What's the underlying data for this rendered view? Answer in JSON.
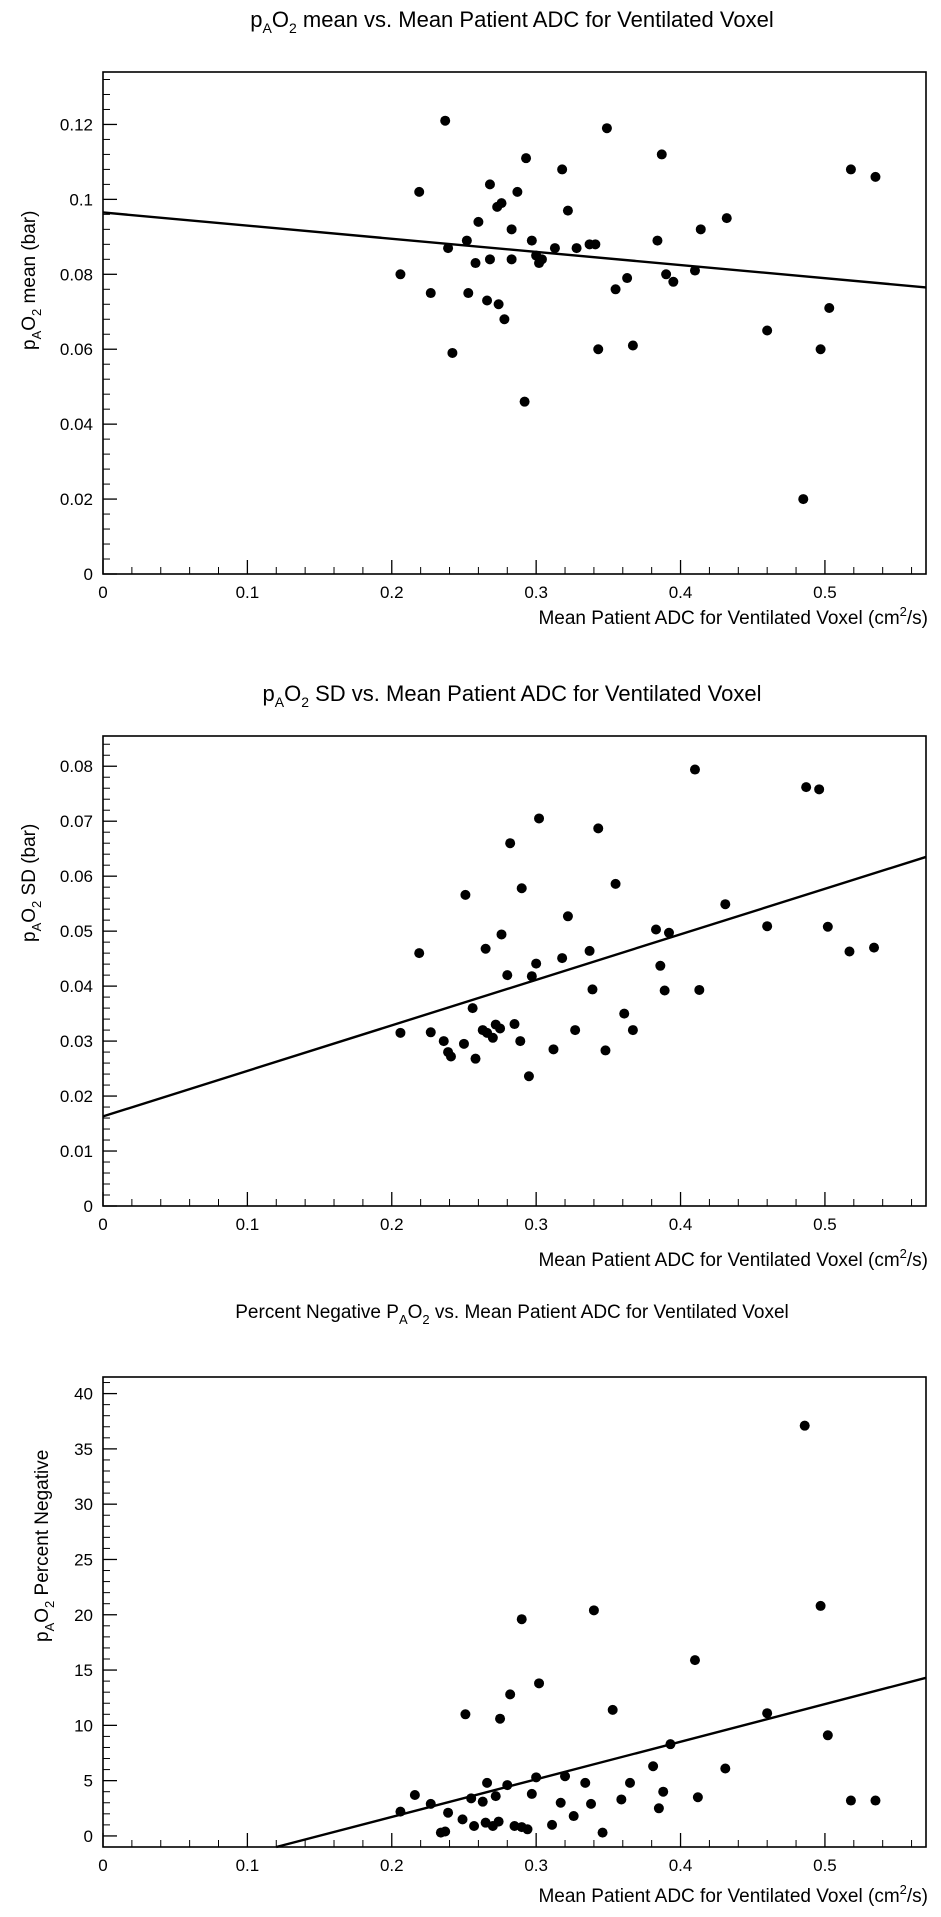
{
  "chart_data": [
    {
      "type": "scatter",
      "title": {
        "prefix": "p",
        "sub": "A",
        "mid": "O",
        "sub2": "2",
        "rest": " mean vs. Mean Patient ADC for Ventilated Voxel"
      },
      "xlabel": {
        "text": "Mean Patient ADC for Ventilated Voxel (cm",
        "sup": "2",
        "tail": "/s)"
      },
      "ylabel": {
        "prefix": "p",
        "sub": "A",
        "mid": "O",
        "sub2": "2",
        "rest": " mean (bar)"
      },
      "xlim": [
        0,
        0.57
      ],
      "ylim": [
        0,
        0.134
      ],
      "xticks": [
        "0",
        "0.1",
        "0.2",
        "0.3",
        "0.4",
        "0.5"
      ],
      "xtick_values": [
        0,
        0.1,
        0.2,
        0.3,
        0.4,
        0.5
      ],
      "yticks": [
        "0",
        "0.02",
        "0.04",
        "0.06",
        "0.08",
        "0.1",
        "0.12"
      ],
      "ytick_values": [
        0,
        0.02,
        0.04,
        0.06,
        0.08,
        0.1,
        0.12
      ],
      "fit_line": [
        [
          0,
          0.0965
        ],
        [
          0.57,
          0.0765
        ]
      ],
      "points": [
        [
          0.206,
          0.08
        ],
        [
          0.219,
          0.102
        ],
        [
          0.227,
          0.075
        ],
        [
          0.237,
          0.121
        ],
        [
          0.239,
          0.087
        ],
        [
          0.242,
          0.059
        ],
        [
          0.252,
          0.089
        ],
        [
          0.253,
          0.075
        ],
        [
          0.258,
          0.083
        ],
        [
          0.26,
          0.094
        ],
        [
          0.266,
          0.073
        ],
        [
          0.268,
          0.104
        ],
        [
          0.268,
          0.084
        ],
        [
          0.273,
          0.098
        ],
        [
          0.274,
          0.072
        ],
        [
          0.276,
          0.099
        ],
        [
          0.278,
          0.068
        ],
        [
          0.283,
          0.092
        ],
        [
          0.283,
          0.084
        ],
        [
          0.287,
          0.102
        ],
        [
          0.292,
          0.046
        ],
        [
          0.293,
          0.111
        ],
        [
          0.297,
          0.089
        ],
        [
          0.3,
          0.085
        ],
        [
          0.302,
          0.083
        ],
        [
          0.304,
          0.084
        ],
        [
          0.313,
          0.087
        ],
        [
          0.318,
          0.108
        ],
        [
          0.322,
          0.097
        ],
        [
          0.328,
          0.087
        ],
        [
          0.337,
          0.088
        ],
        [
          0.341,
          0.088
        ],
        [
          0.343,
          0.06
        ],
        [
          0.349,
          0.119
        ],
        [
          0.355,
          0.076
        ],
        [
          0.363,
          0.079
        ],
        [
          0.367,
          0.061
        ],
        [
          0.384,
          0.089
        ],
        [
          0.387,
          0.112
        ],
        [
          0.39,
          0.08
        ],
        [
          0.395,
          0.078
        ],
        [
          0.41,
          0.081
        ],
        [
          0.414,
          0.092
        ],
        [
          0.432,
          0.095
        ],
        [
          0.46,
          0.065
        ],
        [
          0.485,
          0.02
        ],
        [
          0.497,
          0.06
        ],
        [
          0.503,
          0.071
        ],
        [
          0.518,
          0.108
        ],
        [
          0.535,
          0.106
        ]
      ]
    },
    {
      "type": "scatter",
      "title": {
        "prefix": "p",
        "sub": "A",
        "mid": "O",
        "sub2": "2",
        "rest": " SD vs. Mean Patient ADC for Ventilated Voxel"
      },
      "xlabel": {
        "text": "Mean Patient ADC for Ventilated Voxel (cm",
        "sup": "2",
        "tail": "/s)"
      },
      "ylabel": {
        "prefix": "p",
        "sub": "A",
        "mid": "O",
        "sub2": "2",
        "rest": " SD (bar)"
      },
      "xlim": [
        0,
        0.57
      ],
      "ylim": [
        0,
        0.0855
      ],
      "xticks": [
        "0",
        "0.1",
        "0.2",
        "0.3",
        "0.4",
        "0.5"
      ],
      "xtick_values": [
        0,
        0.1,
        0.2,
        0.3,
        0.4,
        0.5
      ],
      "yticks": [
        "0",
        "0.01",
        "0.02",
        "0.03",
        "0.04",
        "0.05",
        "0.06",
        "0.07",
        "0.08"
      ],
      "ytick_values": [
        0,
        0.01,
        0.02,
        0.03,
        0.04,
        0.05,
        0.06,
        0.07,
        0.08
      ],
      "fit_line": [
        [
          0,
          0.0163
        ],
        [
          0.57,
          0.0635
        ]
      ],
      "points": [
        [
          0.206,
          0.0315
        ],
        [
          0.219,
          0.046
        ],
        [
          0.227,
          0.0316
        ],
        [
          0.236,
          0.03
        ],
        [
          0.239,
          0.028
        ],
        [
          0.241,
          0.0272
        ],
        [
          0.25,
          0.0295
        ],
        [
          0.251,
          0.0566
        ],
        [
          0.256,
          0.036
        ],
        [
          0.258,
          0.0268
        ],
        [
          0.263,
          0.032
        ],
        [
          0.265,
          0.0468
        ],
        [
          0.266,
          0.0315
        ],
        [
          0.27,
          0.0306
        ],
        [
          0.272,
          0.033
        ],
        [
          0.275,
          0.0323
        ],
        [
          0.276,
          0.0494
        ],
        [
          0.28,
          0.042
        ],
        [
          0.282,
          0.066
        ],
        [
          0.285,
          0.0331
        ],
        [
          0.289,
          0.03
        ],
        [
          0.29,
          0.0578
        ],
        [
          0.295,
          0.0236
        ],
        [
          0.297,
          0.0418
        ],
        [
          0.3,
          0.0441
        ],
        [
          0.302,
          0.0705
        ],
        [
          0.312,
          0.0285
        ],
        [
          0.318,
          0.0451
        ],
        [
          0.322,
          0.0527
        ],
        [
          0.327,
          0.032
        ],
        [
          0.337,
          0.0464
        ],
        [
          0.339,
          0.0394
        ],
        [
          0.343,
          0.0687
        ],
        [
          0.348,
          0.0283
        ],
        [
          0.355,
          0.0586
        ],
        [
          0.361,
          0.035
        ],
        [
          0.367,
          0.032
        ],
        [
          0.383,
          0.0503
        ],
        [
          0.386,
          0.0437
        ],
        [
          0.389,
          0.0392
        ],
        [
          0.392,
          0.0497
        ],
        [
          0.41,
          0.0794
        ],
        [
          0.413,
          0.0393
        ],
        [
          0.431,
          0.0549
        ],
        [
          0.46,
          0.0509
        ],
        [
          0.487,
          0.0762
        ],
        [
          0.496,
          0.0758
        ],
        [
          0.502,
          0.0508
        ],
        [
          0.517,
          0.0463
        ],
        [
          0.534,
          0.047
        ]
      ]
    },
    {
      "type": "scatter",
      "title": {
        "prefix": "Percent Negative P",
        "sub": "A",
        "mid": "O",
        "sub2": "2",
        "rest": " vs. Mean Patient ADC for Ventilated Voxel"
      },
      "xlabel": {
        "text": "Mean Patient ADC for Ventilated Voxel (cm",
        "sup": "2",
        "tail": "/s)"
      },
      "ylabel": {
        "prefix": "p",
        "sub": "A",
        "mid": "O",
        "sub2": "2",
        "rest": " Percent Negative"
      },
      "xlim": [
        0,
        0.57
      ],
      "ylim": [
        -1,
        41.5
      ],
      "xticks": [
        "0",
        "0.1",
        "0.2",
        "0.3",
        "0.4",
        "0.5"
      ],
      "xtick_values": [
        0,
        0.1,
        0.2,
        0.3,
        0.4,
        0.5
      ],
      "yticks": [
        "0",
        "5",
        "10",
        "15",
        "20",
        "25",
        "30",
        "35",
        "40"
      ],
      "ytick_values": [
        0,
        5,
        10,
        15,
        20,
        25,
        30,
        35,
        40
      ],
      "fit_line": [
        [
          0.12,
          -1
        ],
        [
          0.57,
          14.3
        ]
      ],
      "points": [
        [
          0.206,
          2.2
        ],
        [
          0.216,
          3.7
        ],
        [
          0.227,
          2.9
        ],
        [
          0.234,
          0.3
        ],
        [
          0.237,
          0.4
        ],
        [
          0.239,
          2.1
        ],
        [
          0.249,
          1.5
        ],
        [
          0.251,
          11.0
        ],
        [
          0.255,
          3.4
        ],
        [
          0.257,
          0.9
        ],
        [
          0.263,
          3.1
        ],
        [
          0.265,
          1.2
        ],
        [
          0.266,
          4.8
        ],
        [
          0.27,
          0.9
        ],
        [
          0.272,
          3.6
        ],
        [
          0.274,
          1.3
        ],
        [
          0.275,
          10.6
        ],
        [
          0.28,
          4.6
        ],
        [
          0.282,
          12.8
        ],
        [
          0.285,
          0.9
        ],
        [
          0.29,
          19.6
        ],
        [
          0.29,
          0.8
        ],
        [
          0.294,
          0.6
        ],
        [
          0.297,
          3.8
        ],
        [
          0.3,
          5.3
        ],
        [
          0.302,
          13.8
        ],
        [
          0.311,
          1.0
        ],
        [
          0.317,
          3.0
        ],
        [
          0.32,
          5.4
        ],
        [
          0.326,
          1.8
        ],
        [
          0.334,
          4.8
        ],
        [
          0.338,
          2.9
        ],
        [
          0.34,
          20.4
        ],
        [
          0.346,
          0.3
        ],
        [
          0.353,
          11.4
        ],
        [
          0.359,
          3.3
        ],
        [
          0.365,
          4.8
        ],
        [
          0.381,
          6.3
        ],
        [
          0.385,
          2.5
        ],
        [
          0.388,
          4.0
        ],
        [
          0.393,
          8.3
        ],
        [
          0.41,
          15.9
        ],
        [
          0.412,
          3.5
        ],
        [
          0.431,
          6.1
        ],
        [
          0.46,
          11.1
        ],
        [
          0.486,
          37.1
        ],
        [
          0.497,
          20.8
        ],
        [
          0.502,
          9.1
        ],
        [
          0.518,
          3.2
        ],
        [
          0.535,
          3.2
        ]
      ]
    }
  ]
}
